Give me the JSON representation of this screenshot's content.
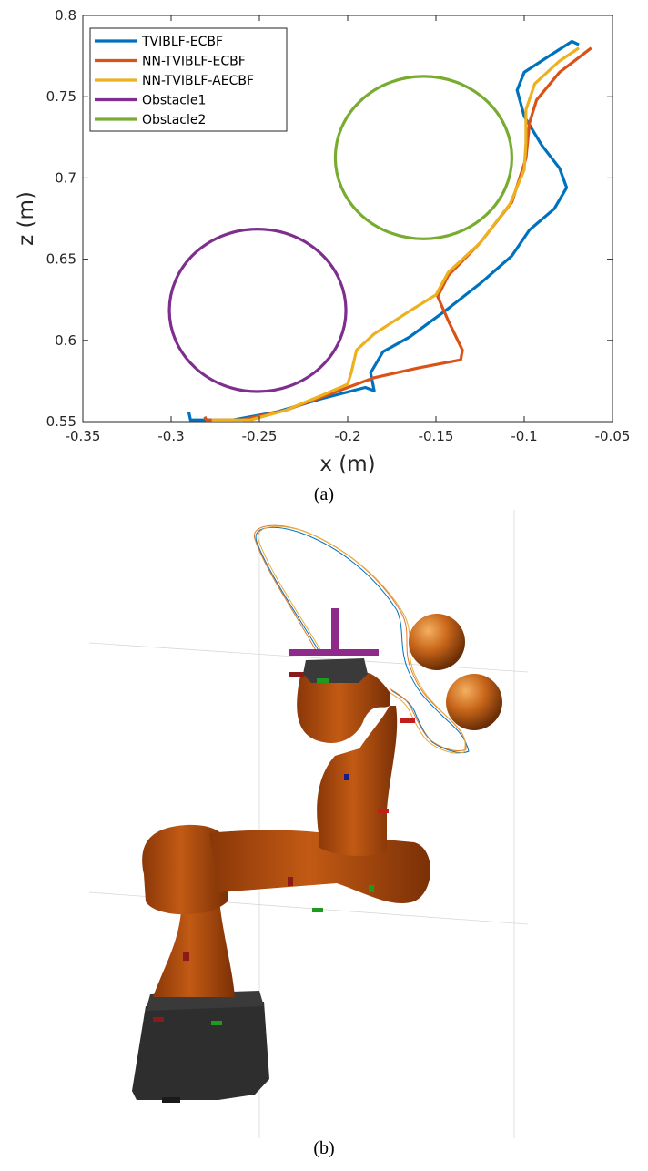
{
  "chart_data": {
    "type": "line",
    "xlabel": "x (m)",
    "ylabel": "z (m)",
    "xlim": [
      -0.35,
      -0.05
    ],
    "ylim": [
      0.55,
      0.8
    ],
    "xticks": [
      "-0.35",
      "-0.3",
      "-0.25",
      "-0.2",
      "-0.15",
      "-0.1",
      "-0.05"
    ],
    "yticks": [
      "0.55",
      "0.6",
      "0.65",
      "0.7",
      "0.75",
      "0.8"
    ],
    "legend_position": "top-left",
    "grid": false,
    "series": [
      {
        "name": "TVIBLF-ECBF",
        "color": "#0072BD",
        "points": [
          [
            -0.29,
            0.556
          ],
          [
            -0.289,
            0.551
          ],
          [
            -0.265,
            0.551
          ],
          [
            -0.24,
            0.556
          ],
          [
            -0.215,
            0.564
          ],
          [
            -0.19,
            0.571
          ],
          [
            -0.185,
            0.569
          ],
          [
            -0.187,
            0.58
          ],
          [
            -0.18,
            0.593
          ],
          [
            -0.165,
            0.602
          ],
          [
            -0.145,
            0.618
          ],
          [
            -0.125,
            0.635
          ],
          [
            -0.107,
            0.652
          ],
          [
            -0.097,
            0.668
          ],
          [
            -0.083,
            0.681
          ],
          [
            -0.076,
            0.694
          ],
          [
            -0.08,
            0.706
          ],
          [
            -0.09,
            0.72
          ],
          [
            -0.1,
            0.738
          ],
          [
            -0.104,
            0.754
          ],
          [
            -0.1,
            0.765
          ],
          [
            -0.086,
            0.775
          ],
          [
            -0.073,
            0.784
          ],
          [
            -0.069,
            0.782
          ]
        ]
      },
      {
        "name": "NN-TVIBLF-ECBF",
        "color": "#D95319",
        "points": [
          [
            -0.281,
            0.553
          ],
          [
            -0.28,
            0.551
          ],
          [
            -0.26,
            0.551
          ],
          [
            -0.235,
            0.557
          ],
          [
            -0.21,
            0.567
          ],
          [
            -0.185,
            0.577
          ],
          [
            -0.16,
            0.583
          ],
          [
            -0.136,
            0.588
          ],
          [
            -0.135,
            0.594
          ],
          [
            -0.143,
            0.612
          ],
          [
            -0.149,
            0.627
          ],
          [
            -0.143,
            0.64
          ],
          [
            -0.125,
            0.66
          ],
          [
            -0.107,
            0.685
          ],
          [
            -0.099,
            0.712
          ],
          [
            -0.097,
            0.734
          ],
          [
            -0.093,
            0.748
          ],
          [
            -0.08,
            0.765
          ],
          [
            -0.062,
            0.78
          ]
        ]
      },
      {
        "name": "NN-TVIBLF-AECBF",
        "color": "#EDB120",
        "points": [
          [
            -0.277,
            0.551
          ],
          [
            -0.255,
            0.551
          ],
          [
            -0.235,
            0.557
          ],
          [
            -0.215,
            0.566
          ],
          [
            -0.2,
            0.573
          ],
          [
            -0.198,
            0.58
          ],
          [
            -0.195,
            0.594
          ],
          [
            -0.185,
            0.604
          ],
          [
            -0.165,
            0.618
          ],
          [
            -0.15,
            0.628
          ],
          [
            -0.143,
            0.642
          ],
          [
            -0.125,
            0.66
          ],
          [
            -0.108,
            0.684
          ],
          [
            -0.1,
            0.705
          ],
          [
            -0.099,
            0.722
          ],
          [
            -0.099,
            0.742
          ],
          [
            -0.094,
            0.758
          ],
          [
            -0.08,
            0.772
          ],
          [
            -0.069,
            0.78
          ]
        ]
      },
      {
        "name": "Obstacle1",
        "color": "#7E2F8E",
        "shape": "circle",
        "center": [
          -0.251,
          0.6185
        ],
        "radius": 0.05
      },
      {
        "name": "Obstacle2",
        "color": "#77AC30",
        "shape": "circle",
        "center": [
          -0.157,
          0.7125
        ],
        "radius": 0.05
      }
    ]
  },
  "captions": {
    "a": "(a)",
    "b": "(b)"
  },
  "render": {
    "robot_color": "#B04A10",
    "base_color": "#2E2E2E",
    "sphere_color": "#C8661A"
  }
}
